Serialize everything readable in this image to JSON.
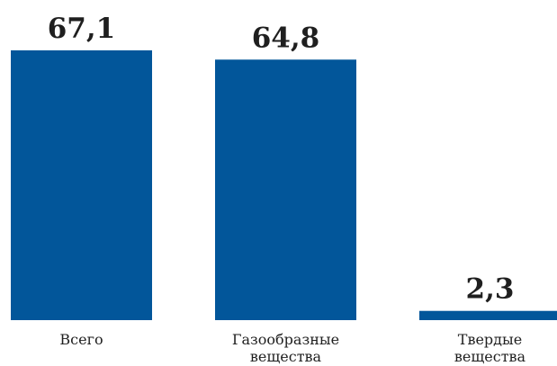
{
  "chart_data": {
    "type": "bar",
    "categories": [
      [
        "Всего"
      ],
      [
        "Газообразные",
        "вещества"
      ],
      [
        "Твердые",
        "вещества"
      ]
    ],
    "values": [
      67.1,
      64.8,
      2.3
    ],
    "value_labels": [
      "67,1",
      "64,8",
      "2,3"
    ],
    "ylim": [
      0,
      67.1
    ],
    "grid": false,
    "legend": "none",
    "title": "",
    "xlabel": "",
    "ylabel": ""
  },
  "colors": {
    "bar": "#02569a",
    "text": "#1f1f1f",
    "background": "#ffffff"
  }
}
